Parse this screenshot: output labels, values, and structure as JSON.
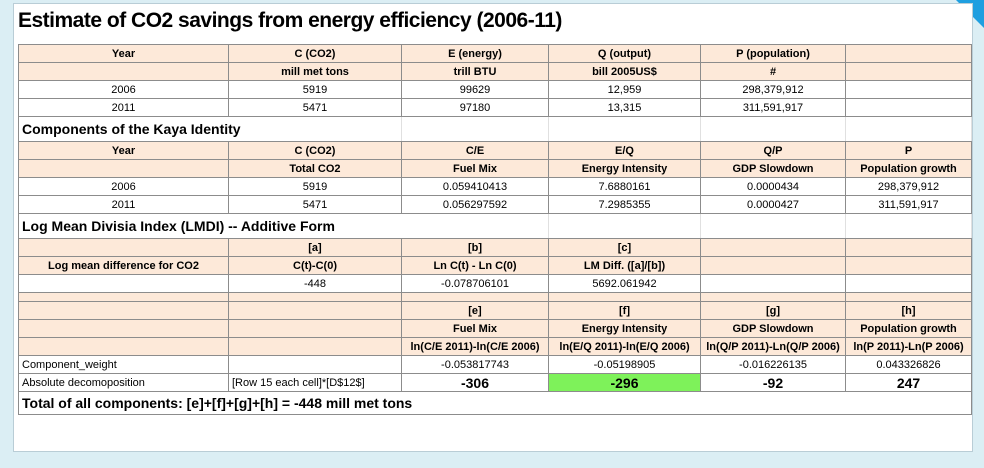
{
  "title": "Estimate of CO2 savings from energy efficiency (2006-11)",
  "inputs": {
    "header": [
      "Year",
      "C (CO2)",
      "E (energy)",
      "Q (output)",
      "P (population)",
      ""
    ],
    "units": [
      "",
      "mill met tons",
      "trill BTU",
      "bill 2005US$",
      "#",
      ""
    ],
    "rows": [
      [
        "2006",
        "5919",
        "99629",
        "12,959",
        "298,379,912",
        ""
      ],
      [
        "2011",
        "5471",
        "97180",
        "13,315",
        "311,591,917",
        ""
      ]
    ]
  },
  "kaya": {
    "section_title": "Components of the Kaya Identity",
    "header": [
      "Year",
      "C (CO2)",
      "C/E",
      "E/Q",
      "Q/P",
      "P"
    ],
    "subheader": [
      "",
      "Total CO2",
      "Fuel Mix",
      "Energy Intensity",
      "GDP Slowdown",
      "Population growth"
    ],
    "rows": [
      [
        "2006",
        "5919",
        "0.059410413",
        "7.6880161",
        "0.0000434",
        "298,379,912"
      ],
      [
        "2011",
        "5471",
        "0.056297592",
        "7.2985355",
        "0.0000427",
        "311,591,917"
      ]
    ]
  },
  "lmdi": {
    "section_title": "Log Mean Divisia Index (LMDI) -- Additive Form",
    "header": [
      "",
      "[a]",
      "[b]",
      "[c]",
      "",
      ""
    ],
    "subheader": [
      "Log mean difference for CO2",
      "C(t)-C(0)",
      "Ln C(t) - Ln C(0)",
      "LM Diff. ([a]/[b])",
      "",
      ""
    ],
    "row": [
      "",
      "-448",
      "-0.078706101",
      "5692.061942",
      "",
      ""
    ]
  },
  "decomp": {
    "header": [
      "",
      "",
      "[e]",
      "[f]",
      "[g]",
      "[h]"
    ],
    "subheader": [
      "",
      "",
      "Fuel Mix",
      "Energy Intensity",
      "GDP Slowdown",
      "Population growth"
    ],
    "formula": [
      "",
      "",
      "ln(C/E 2011)-ln(C/E 2006)",
      "ln(E/Q 2011)-ln(E/Q 2006)",
      "ln(Q/P 2011)-Ln(Q/P 2006)",
      "ln(P 2011)-Ln(P 2006)"
    ],
    "weight_row": [
      "Component_weight",
      "",
      "-0.053817743",
      "-0.05198905",
      "-0.016226135",
      "0.043326826"
    ],
    "absolute_row": [
      "Absolute decomoposition",
      "[Row 15 each cell]*[D$12$]",
      "-306",
      "-296",
      "-92",
      "247"
    ]
  },
  "total_text": "Total of all components: [e]+[f]+[g]+[h] = -448 mill met tons",
  "colors": {
    "header_fill": "#fde9d9",
    "highlight": "#7ef25a",
    "background": "#dbeef4",
    "corner_accent": "#1f9fe0"
  }
}
